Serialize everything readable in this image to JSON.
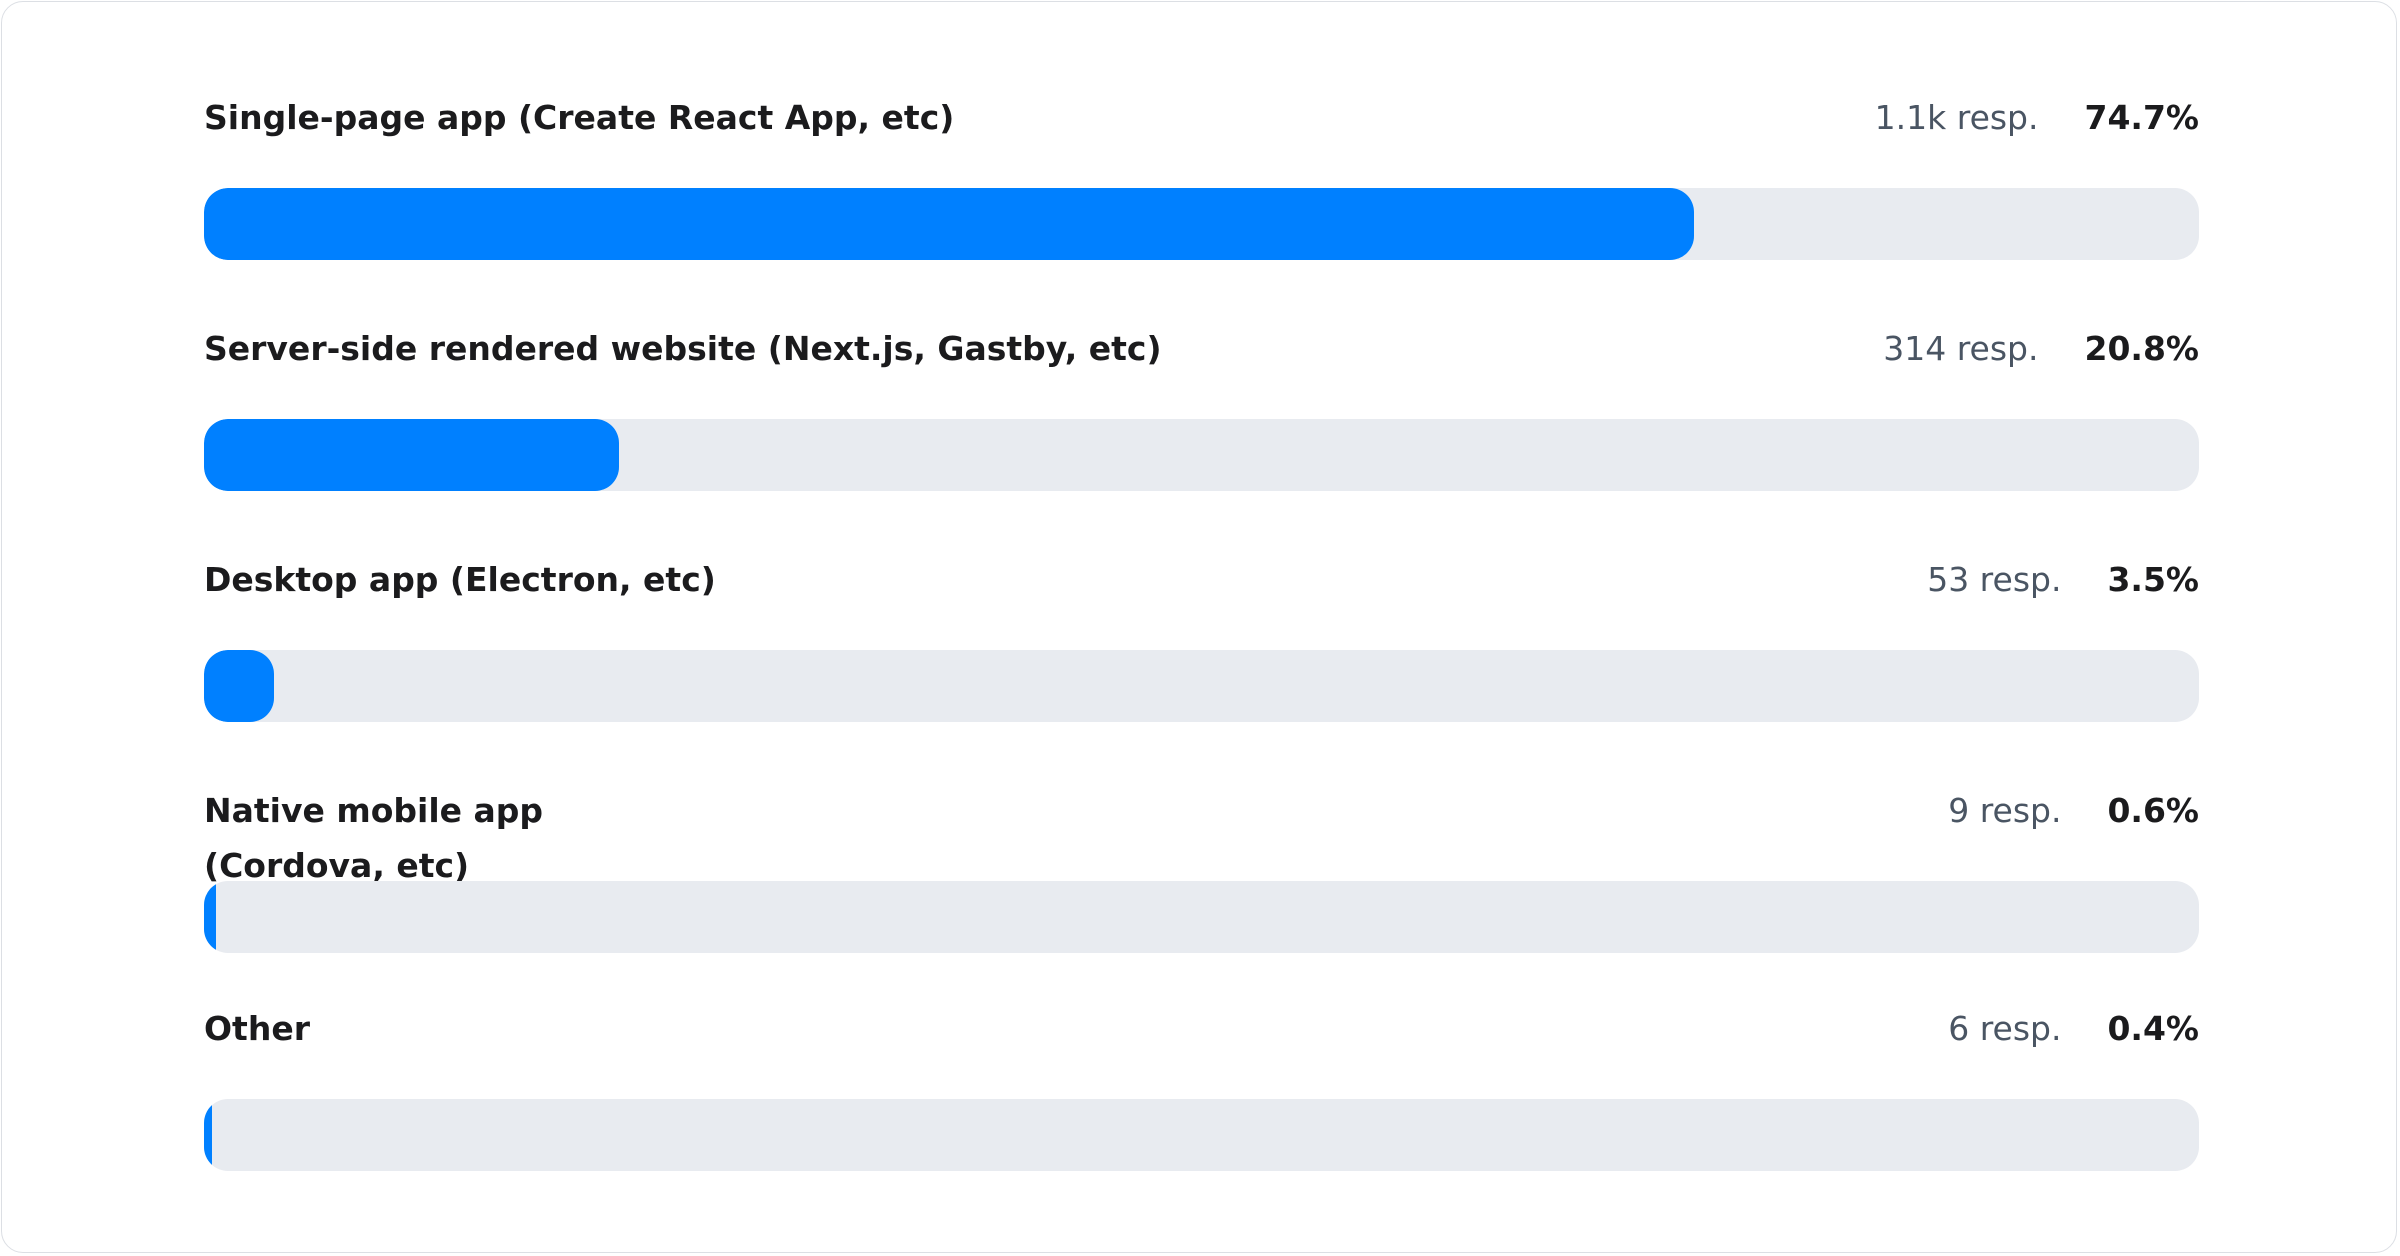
{
  "chart_data": {
    "type": "bar",
    "orientation": "horizontal",
    "categories": [
      "Single-page app (Create React App, etc)",
      "Server-side rendered website (Next.js, Gastby, etc)",
      "Desktop app (Electron, etc)",
      "Native mobile app (Cordova, etc)",
      "Other"
    ],
    "values": [
      74.7,
      20.8,
      3.5,
      0.6,
      0.4
    ],
    "xlim": [
      0,
      100
    ],
    "colors": {
      "fill": "#0080ff",
      "track": "#e8ebf0"
    },
    "items": [
      {
        "label": "Single-page app (Create React App, etc)",
        "responses": "1.1k resp.",
        "percent_label": "74.7%",
        "percent": 74.7
      },
      {
        "label": "Server-side rendered website (Next.js, Gastby, etc)",
        "responses": "314 resp.",
        "percent_label": "20.8%",
        "percent": 20.8
      },
      {
        "label": "Desktop app (Electron, etc)",
        "responses": "53 resp.",
        "percent_label": "3.5%",
        "percent": 3.5
      },
      {
        "label": "Native mobile app (Cordova, etc)",
        "responses": "9 resp.",
        "percent_label": "0.6%",
        "percent": 0.6
      },
      {
        "label": "Other",
        "responses": "6 resp.",
        "percent_label": "0.4%",
        "percent": 0.4
      }
    ]
  }
}
